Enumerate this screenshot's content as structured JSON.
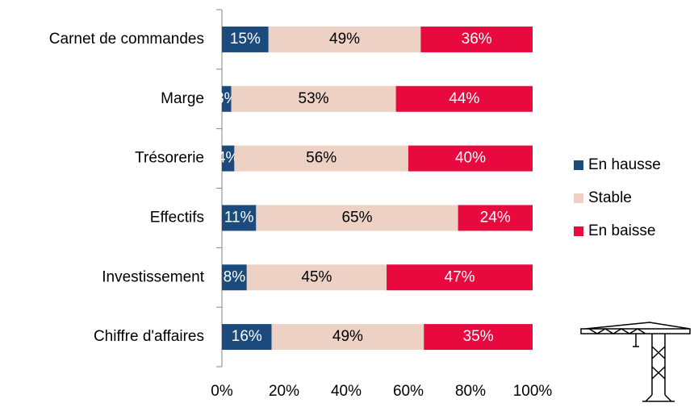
{
  "chart_data": {
    "type": "stacked-bar-horizontal",
    "categories": [
      "Carnet de commandes",
      "Marge",
      "Trésorerie",
      "Effectifs",
      "Investissement",
      "Chiffre d'affaires"
    ],
    "series": [
      {
        "name": "En hausse",
        "color": "#1b4a7c",
        "label_color": "#ffffff",
        "values": [
          15,
          3,
          4,
          11,
          8,
          16
        ],
        "value_labels": [
          "15%",
          "3%",
          "4%",
          "11%",
          "8%",
          "16%"
        ]
      },
      {
        "name": "Stable",
        "color": "#edd1c4",
        "label_color": "#000000",
        "values": [
          49,
          53,
          56,
          65,
          45,
          49
        ],
        "value_labels": [
          "49%",
          "53%",
          "56%",
          "65%",
          "45%",
          "49%"
        ]
      },
      {
        "name": "En baisse",
        "color": "#e8093f",
        "label_color": "#ffffff",
        "values": [
          36,
          44,
          40,
          24,
          47,
          35
        ],
        "value_labels": [
          "36%",
          "44%",
          "40%",
          "24%",
          "47%",
          "35%"
        ]
      }
    ],
    "xlim": [
      0,
      100
    ],
    "xticks": [
      {
        "value": 0,
        "label": "0%"
      },
      {
        "value": 20,
        "label": "20%"
      },
      {
        "value": 40,
        "label": "40%"
      },
      {
        "value": 60,
        "label": "60%"
      },
      {
        "value": 80,
        "label": "80%"
      },
      {
        "value": 100,
        "label": "100%"
      }
    ],
    "legend": "right"
  }
}
